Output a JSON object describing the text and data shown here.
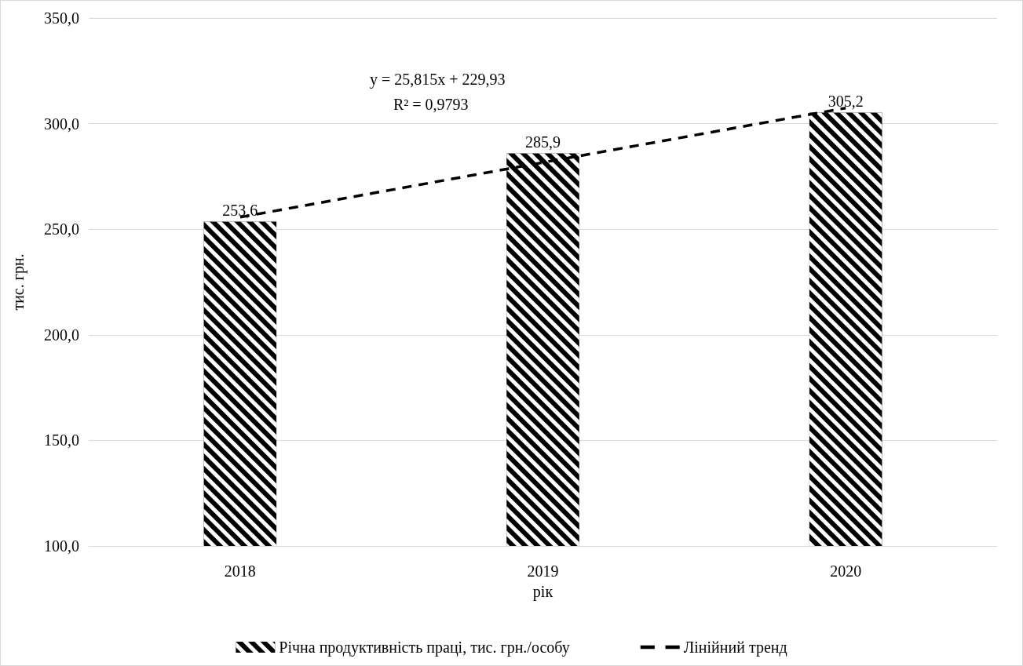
{
  "chart_data": {
    "type": "bar",
    "xlabel": "рік",
    "ylabel": "тис. грн.",
    "categories": [
      "2018",
      "2019",
      "2020"
    ],
    "series": [
      {
        "name": "Річна продуктивність праці, тис. грн./особу",
        "color": "#000000",
        "values": [
          253.6,
          285.9,
          305.2
        ],
        "value_labels": [
          "253,6",
          "285,9",
          "305,2"
        ]
      },
      {
        "type": "line",
        "name": "Лінійний тренд",
        "color": "#000000",
        "values": [
          255.7,
          281.6,
          307.4
        ],
        "line_style": "dashed",
        "marker": "none"
      }
    ],
    "ylim": [
      100,
      350
    ],
    "yticks": [
      {
        "value": 100,
        "label": "100,0"
      },
      {
        "value": 150,
        "label": "150,0"
      },
      {
        "value": 200,
        "label": "200,0"
      },
      {
        "value": 250,
        "label": "250,0"
      },
      {
        "value": 300,
        "label": "300,0"
      },
      {
        "value": 350,
        "label": "350,0"
      }
    ],
    "grid": "y",
    "legend": "bottom",
    "annotations": [
      "y = 25,815x + 229,93",
      "R² = 0,9793"
    ]
  }
}
